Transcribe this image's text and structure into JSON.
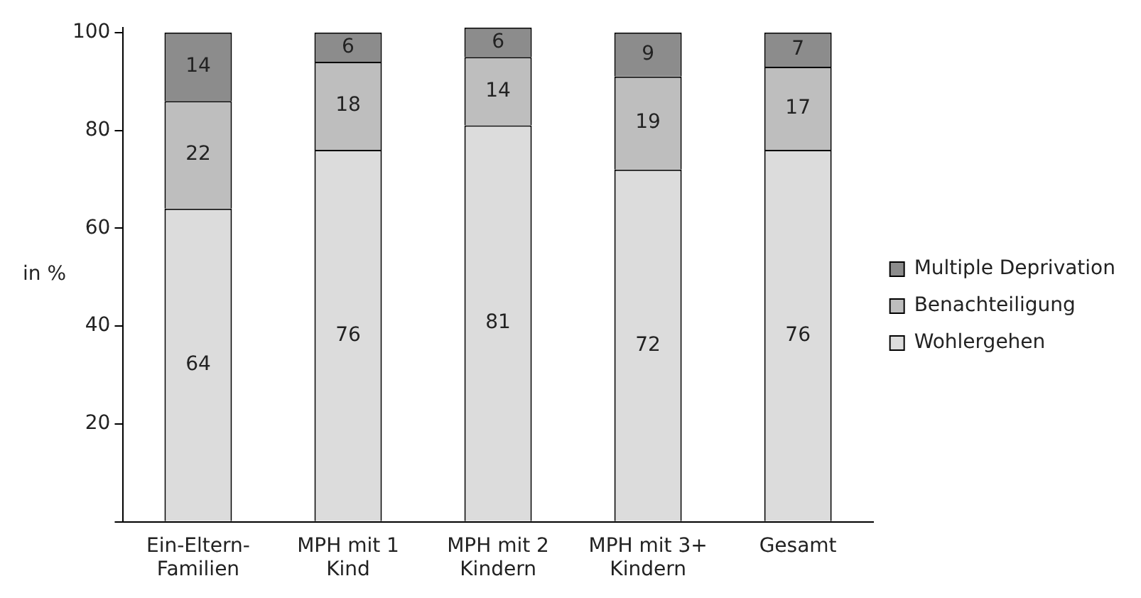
{
  "chart_data": {
    "type": "bar",
    "stacked": true,
    "ylabel": "in %",
    "categories": [
      "Ein-Eltern-Familien",
      "MPH mit 1 Kind",
      "MPH mit 2 Kindern",
      "MPH mit 3+ Kindern",
      "Gesamt"
    ],
    "series": [
      {
        "name": "Wohlergehen",
        "color": "#dcdcdc",
        "values": [
          64,
          76,
          81,
          72,
          76
        ]
      },
      {
        "name": "Benachteiligung",
        "color": "#bebebe",
        "values": [
          22,
          18,
          14,
          19,
          17
        ]
      },
      {
        "name": "Multiple Deprivation",
        "color": "#8c8c8c",
        "values": [
          14,
          6,
          6,
          9,
          7
        ]
      }
    ],
    "ylim": [
      0,
      101
    ],
    "yticks": [
      {
        "value": 0,
        "label": null
      },
      20,
      40,
      60,
      80,
      100
    ],
    "data_labels": true,
    "grid": false,
    "legend": "right"
  }
}
